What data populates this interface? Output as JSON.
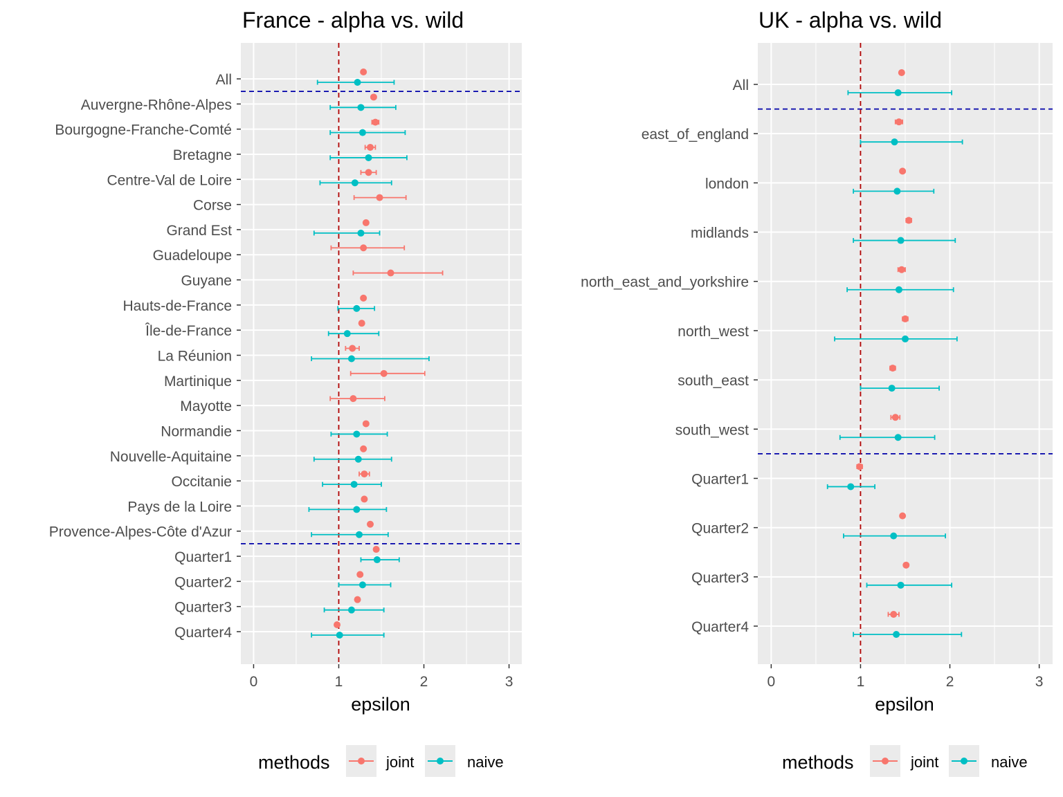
{
  "colors": {
    "joint": "#F8766D",
    "naive": "#00BFC4",
    "ref_line": "#B00000",
    "sep_line": "#0000AA",
    "panel_bg": "#EBEBEB"
  },
  "chart_data": [
    {
      "type": "errorbar",
      "title": "France - alpha vs. wild",
      "xlabel": "epsilon",
      "ylabel": "",
      "xlim": [
        -0.15,
        3.15
      ],
      "xticks": [
        "0",
        "1",
        "2",
        "3"
      ],
      "ref_x": 1,
      "separators_after": [
        "All",
        "Provence-Alpes-Côte d'Azur"
      ],
      "legend": {
        "title": "methods",
        "items": [
          "joint",
          "naive"
        ],
        "placement": "bottom"
      },
      "categories": [
        "All",
        "Auvergne-Rhône-Alpes",
        "Bourgogne-Franche-Comté",
        "Bretagne",
        "Centre-Val de Loire",
        "Corse",
        "Grand Est",
        "Guadeloupe",
        "Guyane",
        "Hauts-de-France",
        "Île-de-France",
        "La Réunion",
        "Martinique",
        "Mayotte",
        "Normandie",
        "Nouvelle-Aquitaine",
        "Occitanie",
        "Pays de la Loire",
        "Provence-Alpes-Côte d'Azur",
        "Quarter1",
        "Quarter2",
        "Quarter3",
        "Quarter4"
      ],
      "series": [
        {
          "name": "joint",
          "estimate": [
            1.29,
            1.41,
            1.43,
            1.37,
            1.35,
            1.48,
            1.32,
            1.29,
            1.61,
            1.29,
            1.27,
            1.16,
            1.53,
            1.17,
            1.32,
            1.29,
            1.3,
            1.3,
            1.37,
            1.44,
            1.25,
            1.22,
            0.98
          ],
          "lower": [
            1.27,
            1.39,
            1.39,
            1.31,
            1.26,
            1.18,
            1.3,
            0.91,
            1.17,
            1.27,
            1.25,
            1.08,
            1.14,
            0.9,
            1.3,
            1.27,
            1.24,
            1.28,
            1.35,
            1.42,
            1.23,
            1.2,
            0.96
          ],
          "upper": [
            1.31,
            1.43,
            1.47,
            1.43,
            1.44,
            1.79,
            1.34,
            1.77,
            2.22,
            1.31,
            1.29,
            1.24,
            2.01,
            1.54,
            1.34,
            1.31,
            1.36,
            1.32,
            1.39,
            1.46,
            1.27,
            1.24,
            1.0
          ]
        },
        {
          "name": "naive",
          "estimate": [
            1.22,
            1.26,
            1.28,
            1.35,
            1.19,
            null,
            1.26,
            null,
            null,
            1.21,
            1.1,
            1.15,
            null,
            null,
            1.21,
            1.23,
            1.18,
            1.21,
            1.24,
            1.45,
            1.28,
            1.15,
            1.01
          ],
          "lower": [
            0.75,
            0.9,
            0.9,
            0.9,
            0.78,
            null,
            0.71,
            null,
            null,
            0.99,
            0.88,
            0.68,
            null,
            null,
            0.91,
            0.71,
            0.81,
            0.65,
            0.68,
            1.26,
            1.0,
            0.83,
            0.68
          ],
          "upper": [
            1.65,
            1.67,
            1.78,
            1.8,
            1.62,
            null,
            1.48,
            null,
            null,
            1.42,
            1.47,
            2.06,
            null,
            null,
            1.57,
            1.62,
            1.5,
            1.56,
            1.58,
            1.71,
            1.61,
            1.53,
            1.53
          ]
        }
      ]
    },
    {
      "type": "errorbar",
      "title": "UK - alpha vs. wild",
      "xlabel": "epsilon",
      "ylabel": "",
      "xlim": [
        -0.15,
        3.15
      ],
      "xticks": [
        "0",
        "1",
        "2",
        "3"
      ],
      "ref_x": 1,
      "separators_after": [
        "All",
        "south_west"
      ],
      "legend": {
        "title": "methods",
        "items": [
          "joint",
          "naive"
        ],
        "placement": "bottom"
      },
      "categories": [
        "All",
        "east_of_england",
        "london",
        "midlands",
        "north_east_and_yorkshire",
        "north_west",
        "south_east",
        "south_west",
        "Quarter1",
        "Quarter2",
        "Quarter3",
        "Quarter4"
      ],
      "series": [
        {
          "name": "joint",
          "estimate": [
            1.46,
            1.43,
            1.47,
            1.54,
            1.46,
            1.5,
            1.36,
            1.39,
            0.99,
            1.47,
            1.51,
            1.37
          ],
          "lower": [
            1.44,
            1.39,
            1.45,
            1.51,
            1.42,
            1.47,
            1.33,
            1.34,
            0.96,
            1.45,
            1.49,
            1.31
          ],
          "upper": [
            1.48,
            1.47,
            1.49,
            1.57,
            1.5,
            1.53,
            1.39,
            1.44,
            1.02,
            1.49,
            1.53,
            1.43
          ]
        },
        {
          "name": "naive",
          "estimate": [
            1.42,
            1.38,
            1.41,
            1.45,
            1.43,
            1.5,
            1.35,
            1.42,
            0.89,
            1.37,
            1.45,
            1.4
          ],
          "lower": [
            0.86,
            1.0,
            0.92,
            0.92,
            0.85,
            0.71,
            1.0,
            0.77,
            0.63,
            0.81,
            1.07,
            0.92
          ],
          "upper": [
            2.02,
            2.14,
            1.82,
            2.06,
            2.04,
            2.08,
            1.88,
            1.83,
            1.16,
            1.95,
            2.02,
            2.13
          ]
        }
      ]
    }
  ]
}
